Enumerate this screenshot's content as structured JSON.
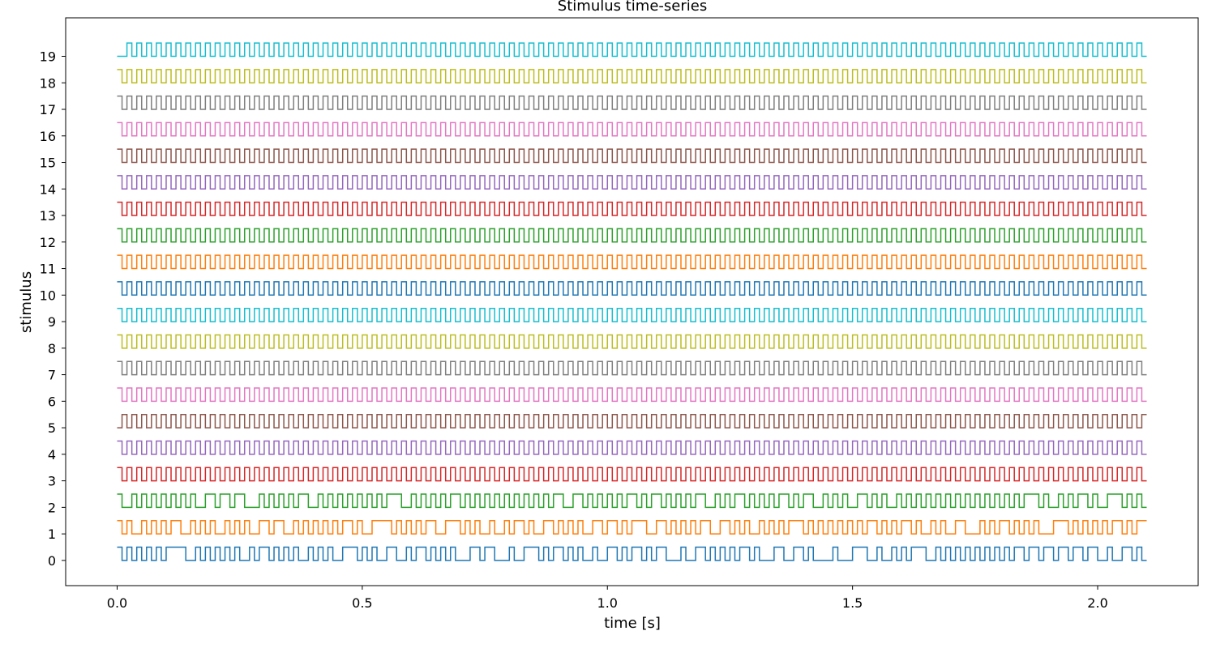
{
  "chart_data": {
    "type": "line",
    "title": "Stimulus time-series",
    "xlabel": "time [s]",
    "ylabel": "stimulus",
    "xlim": [
      -0.105,
      2.205
    ],
    "ylim": [
      -0.95,
      20.45
    ],
    "xticks": [
      0.0,
      0.5,
      1.0,
      1.5,
      2.0
    ],
    "xtick_labels": [
      "0.0",
      "0.5",
      "1.0",
      "1.5",
      "2.0"
    ],
    "yticks": [
      0,
      1,
      2,
      3,
      4,
      5,
      6,
      7,
      8,
      9,
      10,
      11,
      12,
      13,
      14,
      15,
      16,
      17,
      18,
      19
    ],
    "ytick_labels": [
      "0",
      "1",
      "2",
      "3",
      "4",
      "5",
      "6",
      "7",
      "8",
      "9",
      "10",
      "11",
      "12",
      "13",
      "14",
      "15",
      "16",
      "17",
      "18",
      "19"
    ],
    "grid": false,
    "legend": "none",
    "step": 0.01,
    "t_end": 2.1,
    "amplitude": 0.5,
    "series": [
      {
        "offset": 0,
        "color": "#1f77b4",
        "bits": "1010101010111100101010101001011010101001010100111010100110010110101010001101100010011101011010100100110101101011000100110101010110100011001101000010001110010010101110010101010101010101101101101101101100100110101010101010"
      },
      {
        "offset": 1,
        "color": "#ff7f0e",
        "bits": "1010010101011001010100101010011011001010101010110100111101010101100111010100100101101001101010100110110101110011010101011001101010010101011101010101010101101010110100101001100010101101010100011101010101011010111010101010"
      },
      {
        "offset": 2,
        "color": "#2ca02c",
        "bits": "1001010101010101001101101100010101010110010101010101010111001010101011010101010101010101011001101010101011010110101010110010101101010101101011001010100110101001010101010101010101010101011101001010110100111010100101010100"
      },
      {
        "offset": 3,
        "color": "#d62728",
        "bits": "1010101010101010101010101010101010101010101010101010101010101010101010101010101010101010101010101010101010101010101010101010101010101010101010101010101010101010101010101010101010101010101010101010101010101010101010101010"
      },
      {
        "offset": 4,
        "color": "#9467bd",
        "bits": "1010101010101010101010101010101010101010101010101010101010101010101010101010101010101010101010101010101010101010101010101010101010101010101010101010101010101010101010101010101010101010101010101010101010101010101010101010"
      },
      {
        "offset": 5,
        "color": "#8c564b",
        "bits": "0101010101010101010101010101010101010101010101010101010101010101010101010101010101010101010101010101010101010101010101010101010101010101010101010101010101010101010101010101010101010101010101010101010101010101010101010101"
      },
      {
        "offset": 6,
        "color": "#e377c2",
        "bits": "1010101010101010101010101010101010101010101010101010101010101010101010101010101010101010101010101010101010101010101010101010101010101010101010101010101010101010101010101010101010101010101010101010101010101010101010101010"
      },
      {
        "offset": 7,
        "color": "#7f7f7f",
        "bits": "1010101010101010101010101010101010101010101010101010101010101010101010101010101010101010101010101010101010101010101010101010101010101010101010101010101010101010101010101010101010101010101010101010101010101010101010101010"
      },
      {
        "offset": 8,
        "color": "#bcbd22",
        "bits": "1010101010101010101010101010101010101010101010101010101010101010101010101010101010101010101010101010101010101010101010101010101010101010101010101010101010101010101010101010101010101010101010101010101010101010101010101010"
      },
      {
        "offset": 9,
        "color": "#17becf",
        "bits": "1010101010101010101010101010101010101010101010101010101010101010101010101010101010101010101010101010101010101010101010101010101010101010101010101010101010101010101010101010101010101010101010101010101010101010101010101010"
      },
      {
        "offset": 10,
        "color": "#1f77b4",
        "bits": "1010101010101010101010101010101010101010101010101010101010101010101010101010101010101010101010101010101010101010101010101010101010101010101010101010101010101010101010101010101010101010101010101010101010101010101010101010"
      },
      {
        "offset": 11,
        "color": "#ff7f0e",
        "bits": "1010101010101010101010101010101010101010101010101010101010101010101010101010101010101010101010101010101010101010101010101010101010101010101010101010101010101010101010101010101010101010101010101010101010101010101010101010"
      },
      {
        "offset": 12,
        "color": "#2ca02c",
        "bits": "1010101010101010101010101010101010101010101010101010101010101010101010101010101010101010101010101010101010101010101010101010101010101010101010101010101010101010101010101010101010101010101010101010101010101010101010101010"
      },
      {
        "offset": 13,
        "color": "#d62728",
        "bits": "1010101010101010101010101010101010101010101010101010101010101010101010101010101010101010101010101010101010101010101010101010101010101010101010101010101010101010101010101010101010101010101010101010101010101010101010101010"
      },
      {
        "offset": 14,
        "color": "#9467bd",
        "bits": "1010101010101010101010101010101010101010101010101010101010101010101010101010101010101010101010101010101010101010101010101010101010101010101010101010101010101010101010101010101010101010101010101010101010101010101010101010"
      },
      {
        "offset": 15,
        "color": "#8c564b",
        "bits": "1010101010101010101010101010101010101010101010101010101010101010101010101010101010101010101010101010101010101010101010101010101010101010101010101010101010101010101010101010101010101010101010101010101010101010101010101010"
      },
      {
        "offset": 16,
        "color": "#e377c2",
        "bits": "1010101010101010101010101010101010101010101010101010101010101010101010101010101010101010101010101010101010101010101010101010101010101010101010101010101010101010101010101010101010101010101010101010101010101010101010101010"
      },
      {
        "offset": 17,
        "color": "#7f7f7f",
        "bits": "1010101010101010101010101010101010101010101010101010101010101010101010101010101010101010101010101010101010101010101010101010101010101010101010101010101010101010101010101010101010101010101010101010101010101010101010101010"
      },
      {
        "offset": 18,
        "color": "#bcbd22",
        "bits": "1010101010101010101010101010101010101010101010101010101010101010101010101010101010101010101010101010101010101010101010101010101010101010101010101010101010101010101010101010101010101010101010101010101010101010101010101010"
      },
      {
        "offset": 19,
        "color": "#17becf",
        "bits": "0010101010101010101010101010101010101010101010101010101010101010101010101010101010101010101010101010101010101010101010101010101010101010101010101010101010101010101010101010101010101010101010101010101010101010101010101010"
      }
    ]
  }
}
